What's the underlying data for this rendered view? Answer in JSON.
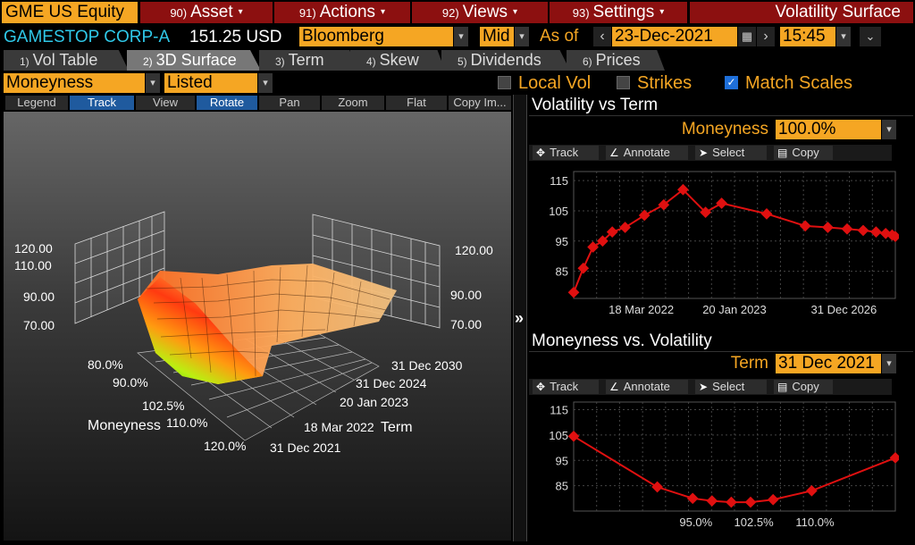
{
  "top_menu": {
    "ticker": "GME US Equity",
    "items": [
      {
        "num": "90)",
        "label": "Asset"
      },
      {
        "num": "91)",
        "label": "Actions"
      },
      {
        "num": "92)",
        "label": "Views"
      },
      {
        "num": "93)",
        "label": "Settings"
      }
    ],
    "function_title": "Volatility Surface"
  },
  "security": {
    "name": "GAMESTOP CORP-A",
    "price": "151.25 USD",
    "source": "Bloomberg",
    "side": "Mid",
    "as_of_label": "As of",
    "date": "23-Dec-2021",
    "time": "15:45"
  },
  "tabs": [
    {
      "num": "1)",
      "label": "Vol Table"
    },
    {
      "num": "2)",
      "label": "3D Surface",
      "active": true
    },
    {
      "num": "3)",
      "label": "Term"
    },
    {
      "num": "4)",
      "label": "Skew"
    },
    {
      "num": "5)",
      "label": "Dividends"
    },
    {
      "num": "6)",
      "label": "Prices"
    }
  ],
  "options": {
    "moneyness_select": "Moneyness",
    "listed_select": "Listed",
    "local_vol": {
      "label": "Local Vol",
      "checked": false
    },
    "strikes": {
      "label": "Strikes",
      "checked": false
    },
    "match_scales": {
      "label": "Match Scales",
      "checked": true
    }
  },
  "toolbar": [
    "Legend",
    "Track",
    "View",
    "Rotate",
    "Pan",
    "Zoom",
    "Flat",
    "Copy Im..."
  ],
  "surface": {
    "z_ticks": [
      "120.00",
      "110.00",
      "90.00",
      "70.00"
    ],
    "z_ticks_right": [
      "120.00",
      "90.00",
      "70.00"
    ],
    "moneyness_ticks": [
      "80.0%",
      "90.0%",
      "102.5%",
      "110.0%",
      "120.0%"
    ],
    "moneyness_label": "Moneyness",
    "term_ticks": [
      "31 Dec 2030",
      "31 Dec 2024",
      "20 Jan 2023",
      "18 Mar 2022",
      "31 Dec 2021"
    ],
    "term_label": "Term"
  },
  "vol_vs_term": {
    "title": "Volatility vs Term",
    "param_label": "Moneyness",
    "param_value": "100.0%",
    "tools": [
      "Track",
      "Annotate",
      "Select",
      "Copy"
    ]
  },
  "money_vs_vol": {
    "title": "Moneyness vs. Volatility",
    "param_label": "Term",
    "param_value": "31 Dec 2021",
    "tools": [
      "Track",
      "Annotate",
      "Select",
      "Copy"
    ]
  },
  "chart_data": [
    {
      "type": "line",
      "title": "Volatility vs Term",
      "x_tick_labels": [
        "18 Mar 2022",
        "20 Jan 2023",
        "31 Dec 2026"
      ],
      "y_ticks": [
        85,
        95,
        105,
        115
      ],
      "ylim": [
        76,
        118
      ],
      "series": [
        {
          "values": [
            78,
            86,
            93,
            95,
            98,
            99.5,
            103.5,
            107,
            112,
            104.5,
            107.5,
            104,
            100,
            99.5,
            99,
            98.5,
            98,
            97.5,
            97,
            96.5
          ]
        }
      ],
      "x_positions": [
        0.0,
        0.03,
        0.06,
        0.09,
        0.12,
        0.16,
        0.22,
        0.28,
        0.34,
        0.41,
        0.46,
        0.6,
        0.72,
        0.79,
        0.85,
        0.9,
        0.94,
        0.97,
        0.99,
        1.0
      ],
      "color": "#e01010"
    },
    {
      "type": "line",
      "title": "Moneyness vs. Volatility",
      "x_tick_labels": [
        "95.0%",
        "102.5%",
        "110.0%"
      ],
      "y_ticks": [
        85,
        95,
        105,
        115
      ],
      "ylim": [
        75,
        118
      ],
      "series": [
        {
          "values": [
            104.5,
            84.5,
            80,
            79,
            78.5,
            78.5,
            79.5,
            83,
            96
          ]
        }
      ],
      "x_positions": [
        0.0,
        0.26,
        0.37,
        0.43,
        0.49,
        0.55,
        0.62,
        0.74,
        1.0
      ],
      "color": "#e01010"
    }
  ]
}
